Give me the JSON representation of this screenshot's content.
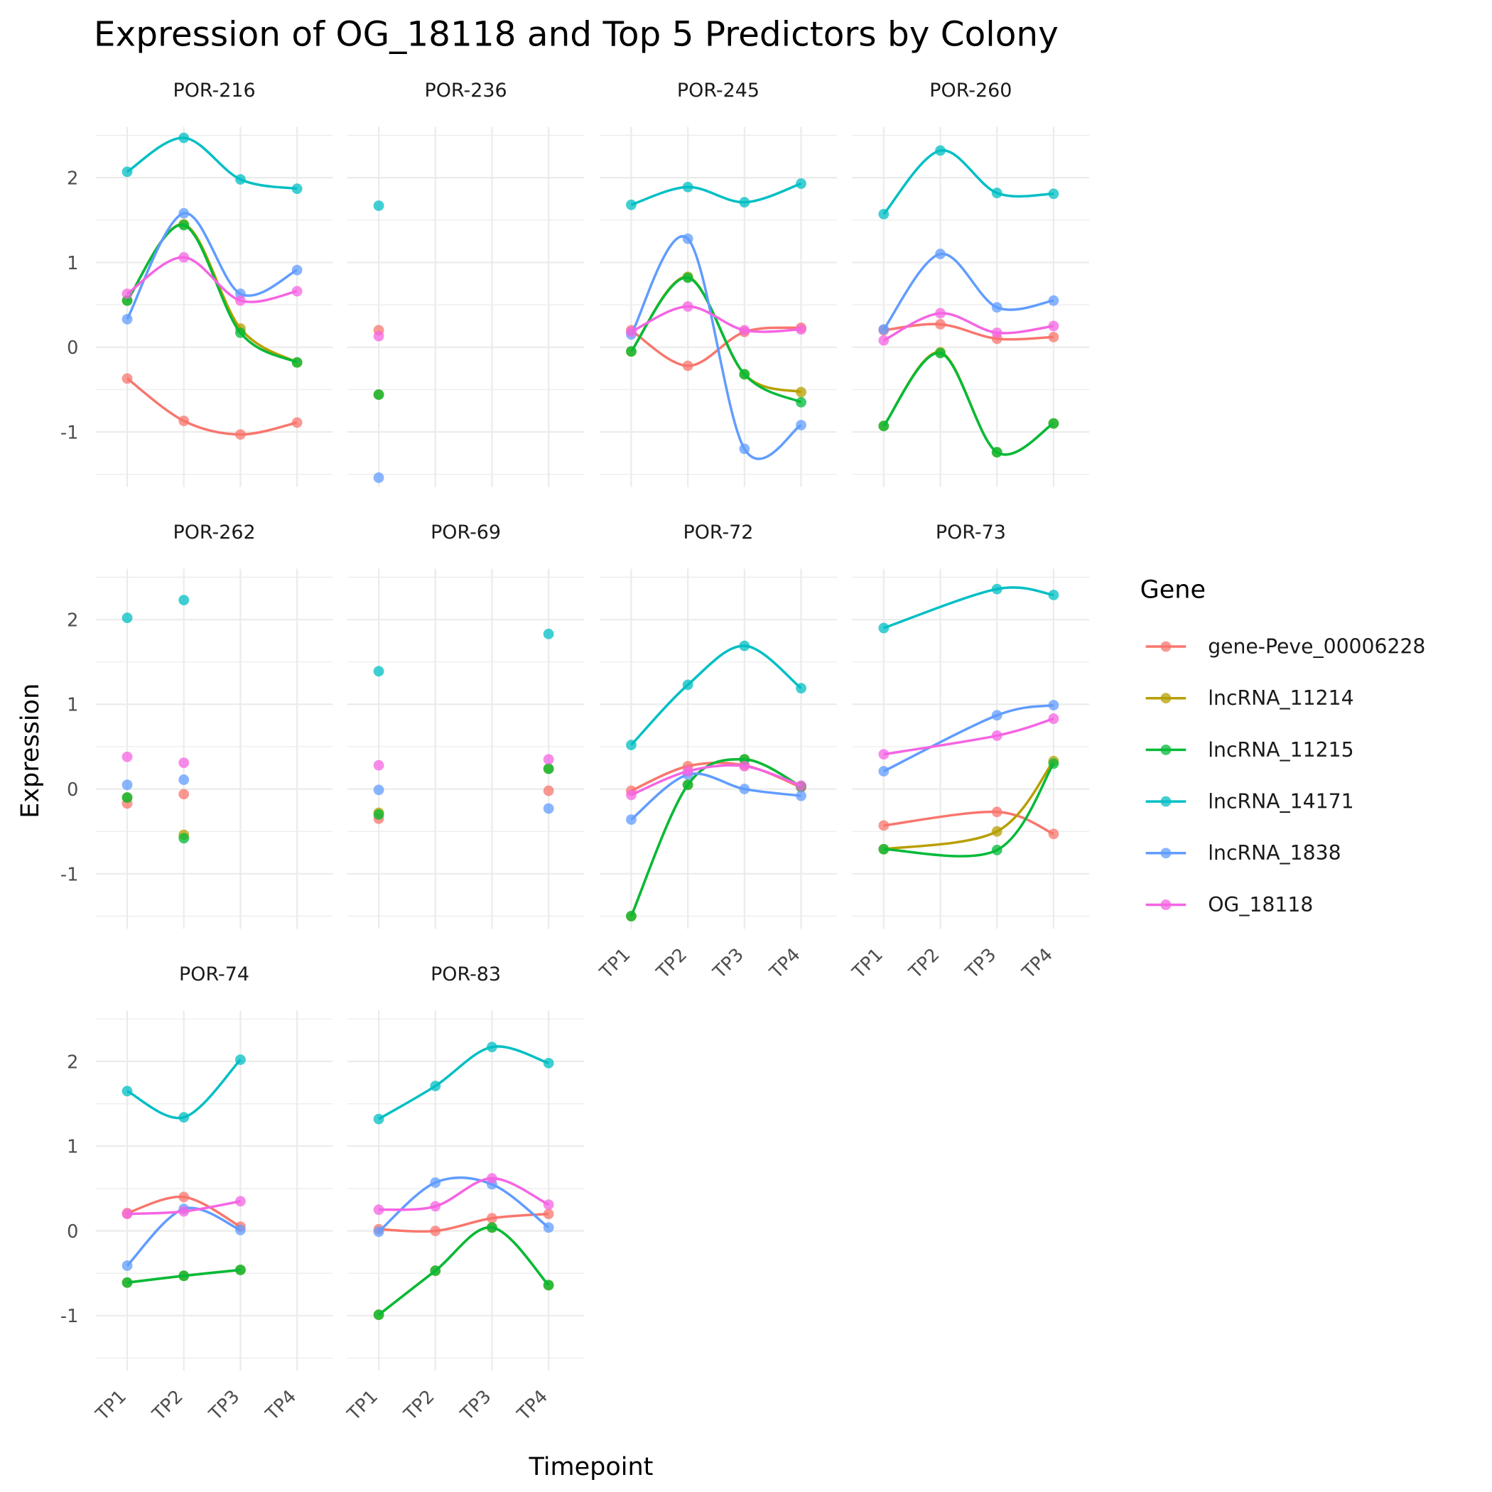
{
  "chart_data": {
    "type": "line",
    "title": "Expression of OG_18118 and Top 5 Predictors by Colony",
    "xlabel": "Timepoint",
    "ylabel": "Expression",
    "categories": [
      "TP1",
      "TP2",
      "TP3",
      "TP4"
    ],
    "y_ticks": [
      -1,
      0,
      1,
      2
    ],
    "ylim": [
      -1.65,
      2.6
    ],
    "grid": true,
    "facet_layout": "4 columns",
    "legend": {
      "title": "Gene",
      "placement": "right"
    },
    "genes": [
      {
        "name": "gene-Peve_00006228",
        "color": "#F8766D"
      },
      {
        "name": "lncRNA_11214",
        "color": "#B79F00"
      },
      {
        "name": "lncRNA_11215",
        "color": "#00BA38"
      },
      {
        "name": "lncRNA_14171",
        "color": "#00BFC4"
      },
      {
        "name": "lncRNA_1838",
        "color": "#619CFF"
      },
      {
        "name": "OG_18118",
        "color": "#F564E3"
      }
    ],
    "facets": [
      {
        "name": "POR-216",
        "series": {
          "gene-Peve_00006228": [
            -0.37,
            -0.87,
            -1.03,
            -0.89
          ],
          "lncRNA_11214": [
            0.55,
            1.45,
            0.22,
            -0.18
          ],
          "lncRNA_11215": [
            0.55,
            1.44,
            0.17,
            -0.18
          ],
          "lncRNA_14171": [
            2.07,
            2.47,
            1.98,
            1.87
          ],
          "lncRNA_1838": [
            0.33,
            1.58,
            0.63,
            0.91
          ],
          "OG_18118": [
            0.63,
            1.06,
            0.55,
            0.66
          ]
        }
      },
      {
        "name": "POR-236",
        "series": {
          "gene-Peve_00006228": [
            0.2,
            null,
            null,
            null
          ],
          "lncRNA_11214": [
            -0.56,
            null,
            null,
            null
          ],
          "lncRNA_11215": [
            -0.56,
            null,
            null,
            null
          ],
          "lncRNA_14171": [
            1.67,
            null,
            null,
            null
          ],
          "lncRNA_1838": [
            -1.54,
            null,
            null,
            null
          ],
          "OG_18118": [
            0.13,
            null,
            null,
            null
          ]
        }
      },
      {
        "name": "POR-245",
        "series": {
          "gene-Peve_00006228": [
            0.2,
            -0.22,
            0.18,
            0.23
          ],
          "lncRNA_11214": [
            -0.05,
            0.83,
            -0.32,
            -0.53
          ],
          "lncRNA_11215": [
            -0.05,
            0.82,
            -0.32,
            -0.65
          ],
          "lncRNA_14171": [
            1.68,
            1.89,
            1.71,
            1.93
          ],
          "lncRNA_1838": [
            0.15,
            1.28,
            -1.2,
            -0.92
          ],
          "OG_18118": [
            0.18,
            0.48,
            0.2,
            0.21
          ]
        }
      },
      {
        "name": "POR-260",
        "series": {
          "gene-Peve_00006228": [
            0.2,
            0.27,
            0.1,
            0.12
          ],
          "lncRNA_11214": [
            -0.93,
            -0.06,
            -1.24,
            -0.9
          ],
          "lncRNA_11215": [
            -0.93,
            -0.07,
            -1.24,
            -0.9
          ],
          "lncRNA_14171": [
            1.57,
            2.32,
            1.82,
            1.81
          ],
          "lncRNA_1838": [
            0.21,
            1.1,
            0.47,
            0.55
          ],
          "OG_18118": [
            0.08,
            0.4,
            0.17,
            0.25
          ]
        }
      },
      {
        "name": "POR-262",
        "series": {
          "gene-Peve_00006228": [
            -0.17,
            -0.06,
            null,
            null
          ],
          "lncRNA_11214": [
            -0.1,
            -0.54,
            null,
            null
          ],
          "lncRNA_11215": [
            -0.1,
            -0.58,
            null,
            null
          ],
          "lncRNA_14171": [
            2.02,
            2.23,
            null,
            null
          ],
          "lncRNA_1838": [
            0.05,
            0.11,
            null,
            null
          ],
          "OG_18118": [
            0.38,
            0.31,
            null,
            null
          ]
        }
      },
      {
        "name": "POR-69",
        "series": {
          "gene-Peve_00006228": [
            -0.35,
            null,
            null,
            -0.02
          ],
          "lncRNA_11214": [
            -0.28,
            null,
            null,
            0.24
          ],
          "lncRNA_11215": [
            -0.3,
            null,
            null,
            0.24
          ],
          "lncRNA_14171": [
            1.39,
            null,
            null,
            1.83
          ],
          "lncRNA_1838": [
            -0.01,
            null,
            null,
            -0.23
          ],
          "OG_18118": [
            0.28,
            null,
            null,
            0.35
          ]
        }
      },
      {
        "name": "POR-72",
        "series": {
          "gene-Peve_00006228": [
            -0.02,
            0.27,
            0.28,
            0.02
          ],
          "lncRNA_11214": [
            -1.5,
            0.05,
            0.35,
            0.03
          ],
          "lncRNA_11215": [
            -1.5,
            0.05,
            0.35,
            0.03
          ],
          "lncRNA_14171": [
            0.52,
            1.23,
            1.69,
            1.19
          ],
          "lncRNA_1838": [
            -0.36,
            0.17,
            0.0,
            -0.08
          ],
          "OG_18118": [
            -0.07,
            0.21,
            0.27,
            0.04
          ]
        }
      },
      {
        "name": "POR-73",
        "series": {
          "gene-Peve_00006228": [
            -0.43,
            null,
            -0.27,
            -0.53
          ],
          "lncRNA_11214": [
            -0.71,
            null,
            -0.5,
            0.33
          ],
          "lncRNA_11215": [
            -0.71,
            null,
            -0.72,
            0.3
          ],
          "lncRNA_14171": [
            1.9,
            null,
            2.36,
            2.29
          ],
          "lncRNA_1838": [
            0.21,
            null,
            0.87,
            0.99
          ],
          "OG_18118": [
            0.41,
            null,
            0.63,
            0.83
          ]
        }
      },
      {
        "name": "POR-74",
        "series": {
          "gene-Peve_00006228": [
            0.21,
            0.4,
            0.05,
            null
          ],
          "lncRNA_11214": [
            -0.61,
            -0.53,
            -0.46,
            null
          ],
          "lncRNA_11215": [
            -0.61,
            -0.53,
            -0.46,
            null
          ],
          "lncRNA_14171": [
            1.65,
            1.34,
            2.02,
            null
          ],
          "lncRNA_1838": [
            -0.41,
            0.26,
            0.01,
            null
          ],
          "OG_18118": [
            0.2,
            0.23,
            0.35,
            null
          ]
        }
      },
      {
        "name": "POR-83",
        "series": {
          "gene-Peve_00006228": [
            0.02,
            0.0,
            0.15,
            0.2
          ],
          "lncRNA_11214": [
            -0.99,
            -0.47,
            0.04,
            -0.64
          ],
          "lncRNA_11215": [
            -0.99,
            -0.47,
            0.04,
            -0.64
          ],
          "lncRNA_14171": [
            1.32,
            1.71,
            2.17,
            1.98
          ],
          "lncRNA_1838": [
            -0.01,
            0.57,
            0.55,
            0.04
          ],
          "OG_18118": [
            0.25,
            0.29,
            0.62,
            0.31
          ]
        }
      }
    ]
  }
}
